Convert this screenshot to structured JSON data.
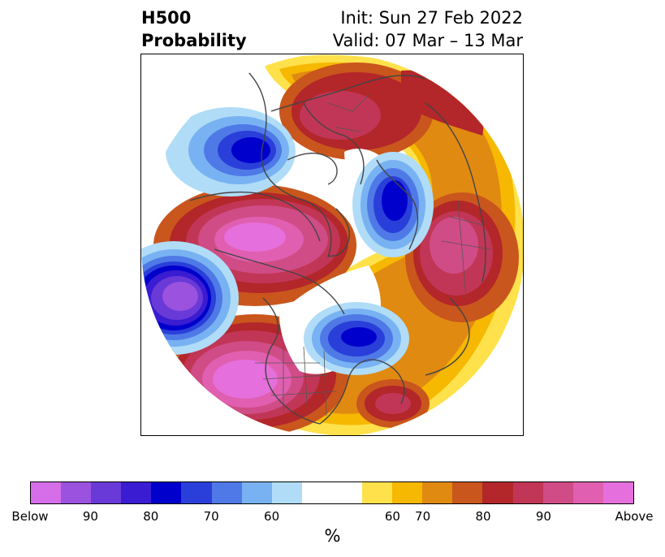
{
  "header": {
    "title_line1": "H500",
    "title_line2": "Probability",
    "init_text": "Init: Sun 27 Feb 2022",
    "valid_text": "Valid: 07 Mar – 13 Mar"
  },
  "colorbar": {
    "colors": [
      "#d56ee8",
      "#9a52df",
      "#6a3ad8",
      "#3a1cd2",
      "#0000cc",
      "#2a3fd9",
      "#4f79e6",
      "#78b2f2",
      "#b0dcf7",
      "#ffffff",
      "#ffffff",
      "#ffe14b",
      "#f6b800",
      "#e08a12",
      "#c9561c",
      "#b3262a",
      "#c13656",
      "#d04c86",
      "#e05fb0",
      "#e56fdc"
    ],
    "tick_labels": [
      "Below",
      "90",
      "80",
      "70",
      "60",
      "60",
      "70",
      "80",
      "90",
      "Above"
    ],
    "unit": "%"
  },
  "map": {
    "background": "#ffffff",
    "coastline_color": "#444444"
  }
}
